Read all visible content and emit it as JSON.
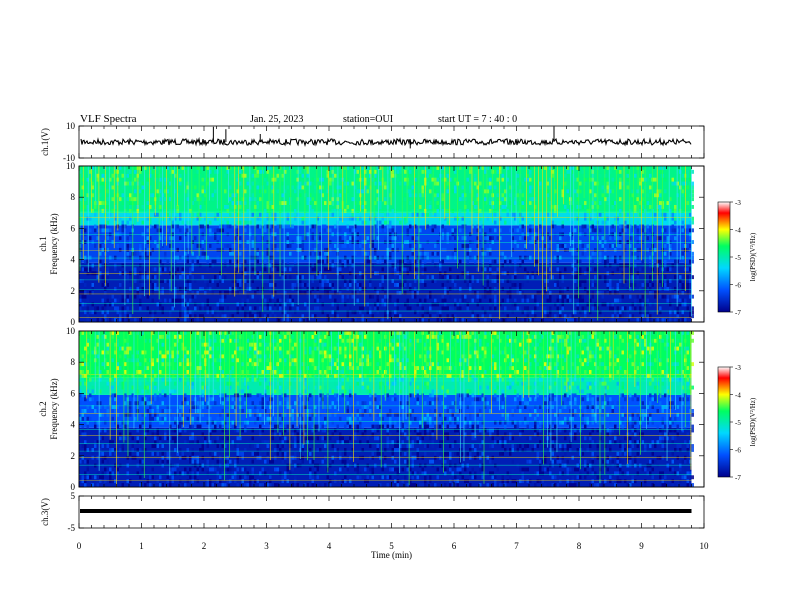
{
  "header": {
    "title": "VLF Spectra",
    "date": "Jan. 25, 2023",
    "station": "station=OUI",
    "start_time": "start UT =  7 : 40 : 0"
  },
  "colorbar": {
    "label": "log(PSD)(V²/Hz)",
    "ticks": [
      "-3",
      "-4",
      "-5",
      "-6",
      "-7"
    ]
  },
  "colors": {
    "spectrum_low": "#00008b",
    "spectrum_mid": "#00ff80",
    "spectrum_high": "#ff0000",
    "waveform": "#000000"
  },
  "chart_data": [
    {
      "type": "line",
      "panel": "ch1-waveform",
      "ylabel": "ch.1(V)",
      "yticks": [
        "10",
        "-10"
      ],
      "ylim": [
        -10,
        10
      ],
      "xlim": [
        0,
        10
      ],
      "baseline": 0,
      "spikes": [
        {
          "x": 2.15,
          "y": 9.5
        },
        {
          "x": 2.35,
          "y": 8
        },
        {
          "x": 2.9,
          "y": 5
        },
        {
          "x": 5.3,
          "y": -4
        },
        {
          "x": 7.6,
          "y": 9.5
        }
      ]
    },
    {
      "type": "heatmap",
      "panel": "ch1-spectrogram",
      "ylabel": "ch.1 Frequency (kHz)",
      "yticks": [
        "10",
        "8",
        "6",
        "4",
        "2",
        "0"
      ],
      "ylim": [
        0,
        10
      ],
      "xlim": [
        0,
        9.8
      ],
      "band_kHz": [
        {
          "f": [
            0,
            3.8
          ],
          "level": -6.7
        },
        {
          "f": [
            3.8,
            6.2
          ],
          "level": -6.3
        },
        {
          "f": [
            6.2,
            7.0
          ],
          "level": -5.3
        },
        {
          "f": [
            7.0,
            10
          ],
          "level": -4.8
        }
      ],
      "tone_lines_kHz": [
        0.3,
        0.7,
        1.2,
        1.8,
        2.1,
        2.7,
        3.1,
        3.6,
        4.1,
        4.6,
        5.1,
        5.6,
        6.7,
        7.1
      ]
    },
    {
      "type": "heatmap",
      "panel": "ch2-spectrogram",
      "ylabel": "ch.2 Frequency (kHz)",
      "yticks": [
        "10",
        "8",
        "6",
        "4",
        "2",
        "0"
      ],
      "ylim": [
        0,
        10
      ],
      "xlim": [
        0,
        9.8
      ],
      "band_kHz": [
        {
          "f": [
            0,
            3.8
          ],
          "level": -6.7
        },
        {
          "f": [
            3.8,
            5.9
          ],
          "level": -6.2
        },
        {
          "f": [
            5.9,
            7.0
          ],
          "level": -5.0
        },
        {
          "f": [
            7.0,
            10
          ],
          "level": -4.6
        }
      ],
      "tone_lines_kHz": [
        0.4,
        0.8,
        1.4,
        1.9,
        2.3,
        2.8,
        3.3,
        3.7,
        4.2,
        4.7,
        5.2,
        6.8,
        7.2
      ]
    },
    {
      "type": "line",
      "panel": "ch3-waveform",
      "ylabel": "ch.3(V)",
      "yticks": [
        "5",
        "-5"
      ],
      "ylim": [
        -5,
        5
      ],
      "xlim": [
        0,
        10
      ],
      "baseline": 0
    }
  ],
  "x_axis": {
    "label": "Time (min)",
    "ticks": [
      "0",
      "1",
      "2",
      "3",
      "4",
      "5",
      "6",
      "7",
      "8",
      "9",
      "10"
    ]
  }
}
